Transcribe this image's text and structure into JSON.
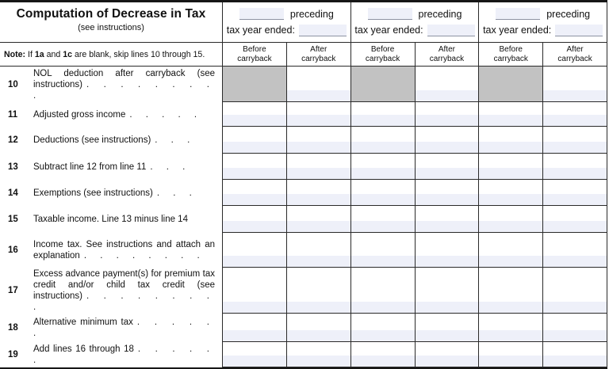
{
  "panel": {
    "title": "Computation of Decrease in Tax",
    "subtitle": "(see instructions)",
    "note": {
      "bold_label": "Note:",
      "seg1": " If ",
      "bold1": "1a",
      "seg2": " and ",
      "bold2": "1c",
      "seg3": " are blank, skip lines 10 through 15."
    }
  },
  "column_groups": {
    "preceding_label": "preceding",
    "tax_year_label": "tax year ended:",
    "before_header_line1": "Before",
    "after_header_line1": "After",
    "header_line2": "carryback",
    "groups": [
      {
        "preceding_value": "",
        "tax_year_value": ""
      },
      {
        "preceding_value": "",
        "tax_year_value": ""
      },
      {
        "preceding_value": "",
        "tax_year_value": ""
      }
    ]
  },
  "rows": [
    {
      "num": "10",
      "label": "NOL deduction after carryback (see instructions)",
      "dots": ". . . . . . . . .",
      "shaded_before": true
    },
    {
      "num": "11",
      "label": "Adjusted gross income",
      "dots": ". . . . .",
      "shaded_before": false
    },
    {
      "num": "12",
      "label": "Deductions (see instructions)",
      "dots": ". . .",
      "shaded_before": false
    },
    {
      "num": "13",
      "label": "Subtract line 12 from line 11",
      "dots": ". . .",
      "shaded_before": false
    },
    {
      "num": "14",
      "label": "Exemptions (see instructions)",
      "dots": ". . .",
      "shaded_before": false
    },
    {
      "num": "15",
      "label": "Taxable income. Line 13 minus line 14",
      "dots": "",
      "shaded_before": false
    },
    {
      "num": "16",
      "label": "Income tax. See instructions and attach an explanation",
      "dots": ". . . . . . . .",
      "shaded_before": false
    },
    {
      "num": "17",
      "label": "Excess advance payment(s) for premium tax credit and/or child tax credit (see instructions)",
      "dots": ". . . . . . . . .",
      "shaded_before": false
    },
    {
      "num": "18",
      "label": "Alternative minimum tax",
      "dots": ". . . . . .",
      "shaded_before": false
    },
    {
      "num": "19",
      "label": "Add lines 16 through 18",
      "dots": ". . . . . .",
      "shaded_before": false
    }
  ],
  "colors": {
    "field_fill": "#eef0f9",
    "shaded_cell": "#c2c2c2",
    "grid_line": "#2a2a2a"
  }
}
